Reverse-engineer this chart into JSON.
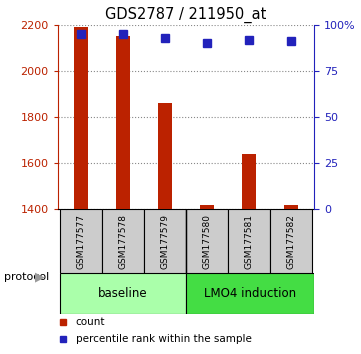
{
  "title": "GDS2787 / 211950_at",
  "samples": [
    "GSM177577",
    "GSM177578",
    "GSM177579",
    "GSM177580",
    "GSM177581",
    "GSM177582"
  ],
  "counts": [
    2190,
    2150,
    1860,
    1415,
    1640,
    1415
  ],
  "percentiles": [
    95,
    95,
    93,
    90,
    92,
    91
  ],
  "ylim_left": [
    1400,
    2200
  ],
  "ylim_right": [
    0,
    100
  ],
  "yticks_left": [
    1400,
    1600,
    1800,
    2000,
    2200
  ],
  "yticks_right": [
    0,
    25,
    50,
    75,
    100
  ],
  "yticklabels_right": [
    "0",
    "25",
    "50",
    "75",
    "100%"
  ],
  "bar_color": "#bb2200",
  "square_color": "#2222bb",
  "sample_box_color": "#cccccc",
  "baseline_color": "#aaffaa",
  "lmo4_color": "#44dd44",
  "baseline_label": "baseline",
  "lmo4_label": "LMO4 induction",
  "legend_count_label": "count",
  "legend_pct_label": "percentile rank within the sample",
  "background_color": "#ffffff",
  "grid_color": "#888888",
  "bar_width": 0.35,
  "x_positions": [
    0,
    1,
    2,
    3,
    4,
    5
  ],
  "protocol_arrow_color": "#999999"
}
